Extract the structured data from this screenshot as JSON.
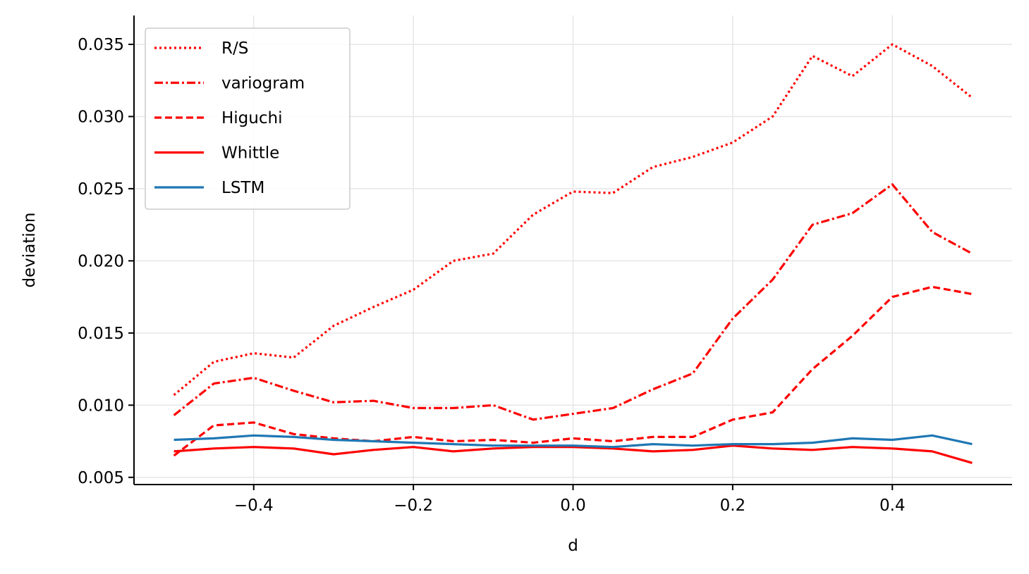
{
  "chart_data": {
    "type": "line",
    "title": "",
    "xlabel": "d",
    "ylabel": "deviation",
    "xlim": [
      -0.55,
      0.55
    ],
    "ylim": [
      0.0045,
      0.037
    ],
    "xticks": [
      -0.4,
      -0.2,
      0.0,
      0.2,
      0.4
    ],
    "xtick_labels": [
      "−0.4",
      "−0.2",
      "0.0",
      "0.2",
      "0.4"
    ],
    "yticks": [
      0.005,
      0.01,
      0.015,
      0.02,
      0.025,
      0.03,
      0.035
    ],
    "ytick_labels": [
      "0.005",
      "0.010",
      "0.015",
      "0.020",
      "0.025",
      "0.030",
      "0.035"
    ],
    "grid": true,
    "legend_position": "top-left",
    "x": [
      -0.5,
      -0.45,
      -0.4,
      -0.35,
      -0.3,
      -0.25,
      -0.2,
      -0.15,
      -0.1,
      -0.05,
      0.0,
      0.05,
      0.1,
      0.15,
      0.2,
      0.25,
      0.3,
      0.35,
      0.4,
      0.45,
      0.5
    ],
    "series": [
      {
        "name": "R/S",
        "color": "#ff0000",
        "dash": "dotted",
        "values": [
          0.0107,
          0.013,
          0.0136,
          0.0133,
          0.0155,
          0.0168,
          0.018,
          0.02,
          0.0205,
          0.0232,
          0.0248,
          0.0247,
          0.0265,
          0.0272,
          0.0282,
          0.03,
          0.0342,
          0.0328,
          0.035,
          0.0335,
          0.0313
        ]
      },
      {
        "name": "variogram",
        "color": "#ff0000",
        "dash": "dashdot",
        "values": [
          0.0093,
          0.0115,
          0.0119,
          0.011,
          0.0102,
          0.0103,
          0.0098,
          0.0098,
          0.01,
          0.009,
          0.0094,
          0.0098,
          0.0111,
          0.0122,
          0.016,
          0.0187,
          0.0225,
          0.0233,
          0.0253,
          0.022,
          0.0205
        ]
      },
      {
        "name": "Higuchi",
        "color": "#ff0000",
        "dash": "dashed",
        "values": [
          0.0065,
          0.0086,
          0.0088,
          0.008,
          0.0077,
          0.0075,
          0.0078,
          0.0075,
          0.0076,
          0.0074,
          0.0077,
          0.0075,
          0.0078,
          0.0078,
          0.009,
          0.0095,
          0.0125,
          0.0148,
          0.0175,
          0.0182,
          0.0177
        ]
      },
      {
        "name": "Whittle",
        "color": "#ff0000",
        "dash": "solid",
        "values": [
          0.0068,
          0.007,
          0.0071,
          0.007,
          0.0066,
          0.0069,
          0.0071,
          0.0068,
          0.007,
          0.0071,
          0.0071,
          0.007,
          0.0068,
          0.0069,
          0.0072,
          0.007,
          0.0069,
          0.0071,
          0.007,
          0.0068,
          0.006
        ]
      },
      {
        "name": "LSTM",
        "color": "#1f77b4",
        "dash": "solid",
        "values": [
          0.0076,
          0.0077,
          0.0079,
          0.0078,
          0.0076,
          0.0075,
          0.0074,
          0.0073,
          0.0072,
          0.0072,
          0.0072,
          0.0071,
          0.0073,
          0.0072,
          0.0073,
          0.0073,
          0.0074,
          0.0077,
          0.0076,
          0.0079,
          0.0073
        ]
      }
    ]
  }
}
